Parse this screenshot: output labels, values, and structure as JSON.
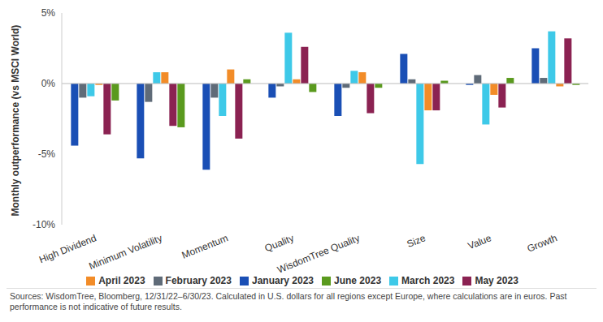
{
  "chart_data": {
    "type": "bar",
    "y_label": "Monthly outperformance (vs MSCI World)",
    "categories": [
      "High Dividend",
      "Minimum Volatility",
      "Momentum",
      "Quality",
      "WisdomTree Quality",
      "Size",
      "Value",
      "Growth"
    ],
    "series": [
      {
        "name": "January 2023",
        "color": "#1a4fb5",
        "values": [
          -4.4,
          -5.3,
          -6.1,
          -1.0,
          -2.3,
          2.1,
          -0.1,
          2.5
        ]
      },
      {
        "name": "February 2023",
        "color": "#5f6b78",
        "values": [
          -1.0,
          -1.3,
          -1.0,
          -0.2,
          -0.3,
          0.3,
          0.6,
          0.4
        ]
      },
      {
        "name": "March 2023",
        "color": "#3ec9e8",
        "values": [
          -0.9,
          0.8,
          -2.3,
          3.6,
          0.9,
          -5.7,
          -2.9,
          3.7
        ]
      },
      {
        "name": "April 2023",
        "color": "#f28c28",
        "values": [
          -0.1,
          0.8,
          1.0,
          0.3,
          0.8,
          -1.9,
          -0.8,
          -0.2
        ]
      },
      {
        "name": "May 2023",
        "color": "#8b2252",
        "values": [
          -3.6,
          -3.0,
          -3.9,
          2.6,
          -2.1,
          -1.9,
          -1.7,
          3.2
        ]
      },
      {
        "name": "June 2023",
        "color": "#5a9a1e",
        "values": [
          -1.2,
          -3.1,
          0.3,
          -0.6,
          -0.3,
          0.2,
          0.4,
          -0.1
        ]
      }
    ],
    "ylim": [
      -10,
      5
    ],
    "yticks": [
      {
        "value": -10,
        "label": "-10%"
      },
      {
        "value": -5,
        "label": "-5%"
      },
      {
        "value": 0,
        "label": "0%"
      },
      {
        "value": 5,
        "label": "5%"
      }
    ],
    "grid": false,
    "legend": "bottom",
    "source": "Sources: WisdomTree, Bloomberg, 12/31/22–6/30/23. Calculated in U.S. dollars for all regions except Europe, where calculations are in euros. Past performance is not indicative of future results."
  }
}
